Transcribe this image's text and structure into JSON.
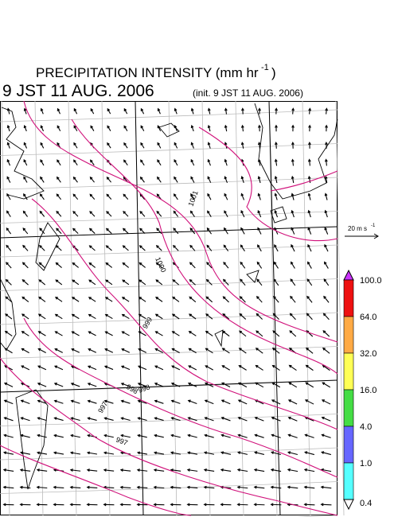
{
  "header": {
    "title": "PRECIPITATION INTENSITY (mm hr",
    "title_exponent": "-1",
    "title_close": ")",
    "valid_time": "9 JST 11 AUG. 2006",
    "init_time": "(init. 9 JST 11 AUG. 2006)"
  },
  "wind_scale": {
    "label": "20 m s",
    "exponent": "-1"
  },
  "contour_labels": [
    "1001",
    "1000",
    "999",
    "998",
    "998",
    "997",
    "997"
  ],
  "colorbar": {
    "labels": [
      "100.0",
      "64.0",
      "32.0",
      "16.0",
      "4.0",
      "1.0",
      "0.4"
    ],
    "colors": [
      "#ee1111",
      "#ffaa44",
      "#ffff55",
      "#44dd44",
      "#6666ff",
      "#55ffff"
    ],
    "over_color": "#cc33ff",
    "under_color": "#ffffff"
  }
}
